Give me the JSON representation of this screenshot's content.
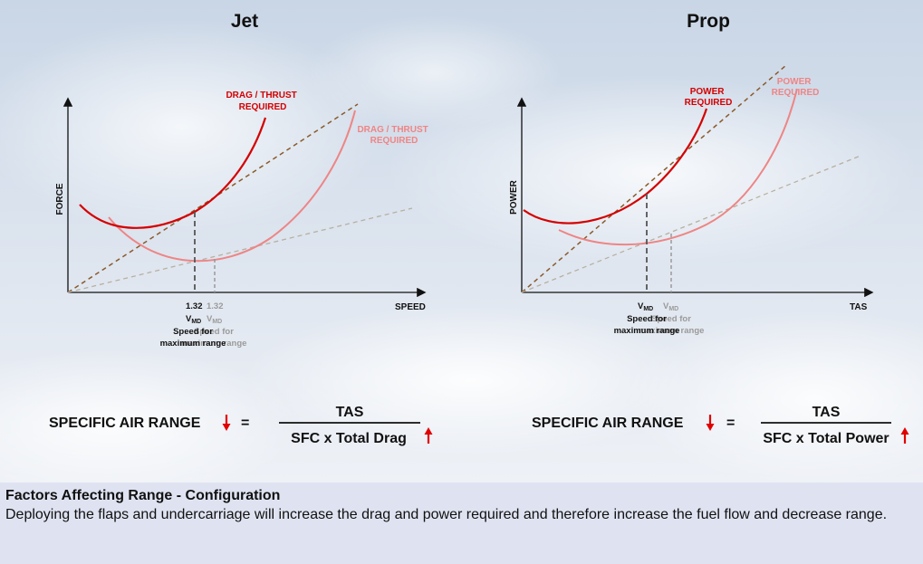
{
  "colors": {
    "accent": "#d40000",
    "accent_light": "#ee8585",
    "footer_bg": "#dfe3f1"
  },
  "jet": {
    "title": "Jet",
    "y_axis": "FORCE",
    "x_axis": "SPEED",
    "curve_label_1": [
      "DRAG / THRUST",
      "REQUIRED"
    ],
    "curve_label_2": [
      "DRAG / THRUST",
      "REQUIRED"
    ],
    "factor": "1.32",
    "vmd": "V",
    "vmd_sub": "MD",
    "speed_for": "Speed for",
    "max_range": "maximum range",
    "eq_left": "SPECIFIC AIR RANGE",
    "eq_sign": "=",
    "eq_num": "TAS",
    "eq_den": "SFC x Total Drag"
  },
  "prop": {
    "title": "Prop",
    "y_axis": "POWER",
    "x_axis": "TAS",
    "curve_label_1": [
      "POWER",
      "REQUIRED"
    ],
    "curve_label_2": [
      "POWER",
      "REQUIRED"
    ],
    "vmd": "V",
    "vmd_sub": "MD",
    "speed_for": "Speed for",
    "max_range": "maximum range",
    "eq_left": "SPECIFIC AIR RANGE",
    "eq_sign": "=",
    "eq_num": "TAS",
    "eq_den": "SFC x Total Power"
  },
  "footer": {
    "title": "Factors Affecting Range - Configuration",
    "text": "Deploying the flaps and undercarriage will increase the drag and power required and therefore increase the fuel flow and decrease range."
  }
}
